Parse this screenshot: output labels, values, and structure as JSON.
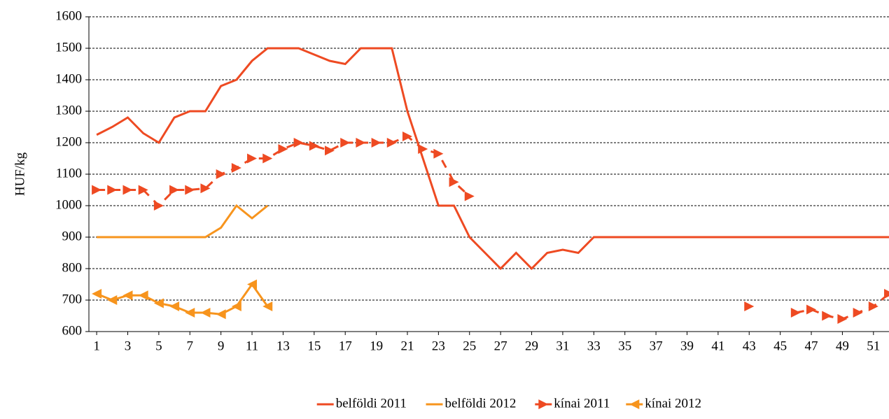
{
  "chart_data": {
    "type": "line",
    "y_label": "HUF/kg",
    "x": [
      1,
      2,
      3,
      4,
      5,
      6,
      7,
      8,
      9,
      10,
      11,
      12,
      13,
      14,
      15,
      16,
      17,
      18,
      19,
      20,
      21,
      22,
      23,
      24,
      25,
      26,
      27,
      28,
      29,
      30,
      31,
      32,
      33,
      34,
      35,
      36,
      37,
      38,
      39,
      40,
      41,
      42,
      43,
      44,
      45,
      46,
      47,
      48,
      49,
      50,
      51,
      52
    ],
    "xlim": [
      0.5,
      52
    ],
    "xticks": [
      1,
      3,
      5,
      7,
      9,
      11,
      13,
      15,
      17,
      19,
      21,
      23,
      25,
      27,
      29,
      31,
      33,
      35,
      37,
      39,
      41,
      43,
      45,
      47,
      49,
      51
    ],
    "ylim": [
      600,
      1600
    ],
    "yticks": [
      600,
      700,
      800,
      900,
      1000,
      1100,
      1200,
      1300,
      1400,
      1500,
      1600
    ],
    "grid": true,
    "legend": "bottom",
    "series": [
      {
        "name": "belföldi 2011",
        "color": "#ee4a22",
        "dashed": false,
        "marker": null,
        "values": [
          1225,
          1250,
          1280,
          1230,
          1200,
          1280,
          1300,
          1300,
          1380,
          1400,
          1460,
          1500,
          1500,
          1500,
          1480,
          1460,
          1450,
          1500,
          1500,
          1500,
          1300,
          1150,
          1000,
          1000,
          900,
          850,
          800,
          850,
          800,
          850,
          860,
          850,
          900,
          900,
          900,
          900,
          900,
          900,
          900,
          900,
          900,
          900,
          900,
          900,
          900,
          900,
          900,
          900,
          900,
          900,
          900,
          900
        ]
      },
      {
        "name": "belföldi 2012",
        "color": "#f7941d",
        "dashed": false,
        "marker": null,
        "values": [
          900,
          900,
          900,
          900,
          900,
          900,
          900,
          900,
          930,
          1000,
          960,
          1000,
          null,
          null,
          null,
          null,
          null,
          null,
          null,
          null,
          null,
          null,
          null,
          null,
          null,
          null,
          null,
          null,
          null,
          null,
          null,
          null,
          null,
          null,
          null,
          null,
          null,
          null,
          null,
          null,
          null,
          null,
          null,
          null,
          null,
          null,
          null,
          null,
          null,
          null,
          null,
          null
        ]
      },
      {
        "name": "kínai 2011",
        "color": "#ee4a22",
        "dashed": true,
        "marker": "triangle-right",
        "values": [
          1050,
          1050,
          1050,
          1050,
          1000,
          1050,
          1050,
          1055,
          1100,
          1120,
          1150,
          1150,
          1180,
          1200,
          1190,
          1175,
          1200,
          1200,
          1200,
          1200,
          1220,
          1180,
          1165,
          1075,
          1030,
          null,
          null,
          null,
          null,
          null,
          null,
          null,
          null,
          null,
          null,
          null,
          null,
          null,
          null,
          null,
          null,
          null,
          680,
          null,
          null,
          660,
          670,
          650,
          640,
          660,
          680,
          720
        ]
      },
      {
        "name": "kínai 2012",
        "color": "#f7941d",
        "dashed": false,
        "marker": "triangle-left",
        "values": [
          720,
          700,
          715,
          715,
          690,
          680,
          660,
          660,
          655,
          680,
          750,
          680,
          null,
          null,
          null,
          null,
          null,
          null,
          null,
          null,
          null,
          null,
          null,
          null,
          null,
          null,
          null,
          null,
          null,
          null,
          null,
          null,
          null,
          null,
          null,
          null,
          null,
          null,
          null,
          null,
          null,
          null,
          null,
          null,
          null,
          null,
          null,
          null,
          null,
          null,
          null,
          null
        ]
      }
    ]
  }
}
